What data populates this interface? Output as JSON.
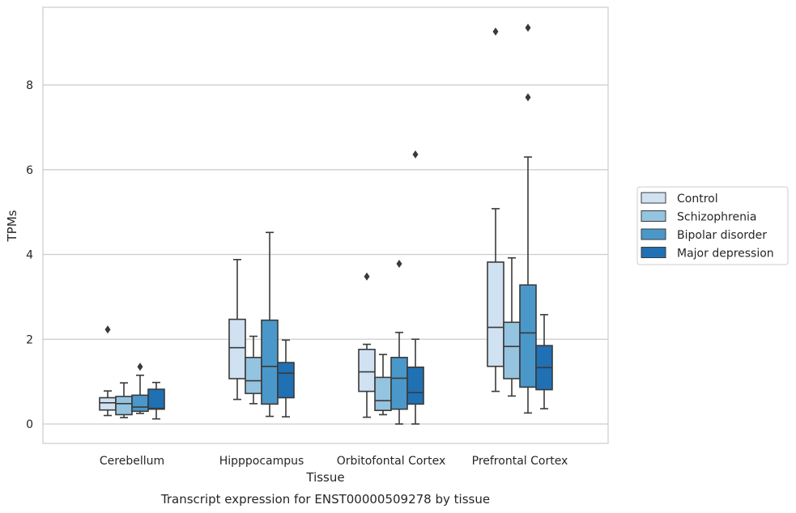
{
  "chart_data": {
    "type": "box",
    "xlabel": "Tissue",
    "ylabel": "TPMs",
    "caption": "Transcript expression for ENST00000509278 by tissue",
    "ylim": [
      -0.45,
      9.8
    ],
    "yticks": [
      0,
      2,
      4,
      6,
      8
    ],
    "categories": [
      "Cerebellum",
      "Hipppocampus",
      "Orbitofontal Cortex",
      "Prefrontal Cortex"
    ],
    "legend_position": "right",
    "grid": "horizontal",
    "series": [
      {
        "name": "Control",
        "color": "#d0e1f2",
        "boxes": [
          {
            "whislo": 0.2,
            "q1": 0.33,
            "med": 0.5,
            "q3": 0.62,
            "whishi": 0.78,
            "fliers": [
              2.23
            ]
          },
          {
            "whislo": 0.58,
            "q1": 1.07,
            "med": 1.8,
            "q3": 2.47,
            "whishi": 3.88,
            "fliers": []
          },
          {
            "whislo": 0.16,
            "q1": 0.77,
            "med": 1.23,
            "q3": 1.76,
            "whishi": 1.88,
            "fliers": [
              3.48
            ]
          },
          {
            "whislo": 0.77,
            "q1": 1.36,
            "med": 2.28,
            "q3": 3.82,
            "whishi": 5.08,
            "fliers": [
              9.26
            ]
          }
        ]
      },
      {
        "name": "Schizophrenia",
        "color": "#94c4df",
        "boxes": [
          {
            "whislo": 0.15,
            "q1": 0.22,
            "med": 0.48,
            "q3": 0.65,
            "whishi": 0.97,
            "fliers": []
          },
          {
            "whislo": 0.48,
            "q1": 0.72,
            "med": 1.02,
            "q3": 1.57,
            "whishi": 2.07,
            "fliers": []
          },
          {
            "whislo": 0.22,
            "q1": 0.32,
            "med": 0.55,
            "q3": 1.1,
            "whishi": 1.64,
            "fliers": []
          },
          {
            "whislo": 0.66,
            "q1": 1.07,
            "med": 1.83,
            "q3": 2.4,
            "whishi": 3.92,
            "fliers": []
          }
        ]
      },
      {
        "name": "Bipolar disorder",
        "color": "#4a98c9",
        "boxes": [
          {
            "whislo": 0.25,
            "q1": 0.3,
            "med": 0.4,
            "q3": 0.68,
            "whishi": 1.15,
            "fliers": [
              1.35
            ]
          },
          {
            "whislo": 0.18,
            "q1": 0.47,
            "med": 1.36,
            "q3": 2.45,
            "whishi": 4.52,
            "fliers": []
          },
          {
            "whislo": 0.0,
            "q1": 0.35,
            "med": 1.08,
            "q3": 1.57,
            "whishi": 2.16,
            "fliers": [
              3.78
            ]
          },
          {
            "whislo": 0.26,
            "q1": 0.87,
            "med": 2.15,
            "q3": 3.28,
            "whishi": 6.3,
            "fliers": [
              7.71,
              9.35
            ]
          }
        ]
      },
      {
        "name": "Major depression",
        "color": "#2070b4",
        "boxes": [
          {
            "whislo": 0.12,
            "q1": 0.35,
            "med": 0.37,
            "q3": 0.82,
            "whishi": 0.98,
            "fliers": []
          },
          {
            "whislo": 0.17,
            "q1": 0.62,
            "med": 1.2,
            "q3": 1.45,
            "whishi": 1.98,
            "fliers": []
          },
          {
            "whislo": 0.0,
            "q1": 0.47,
            "med": 0.74,
            "q3": 1.34,
            "whishi": 2.0,
            "fliers": [
              6.36
            ]
          },
          {
            "whislo": 0.36,
            "q1": 0.81,
            "med": 1.33,
            "q3": 1.85,
            "whishi": 2.58,
            "fliers": []
          }
        ]
      }
    ]
  }
}
